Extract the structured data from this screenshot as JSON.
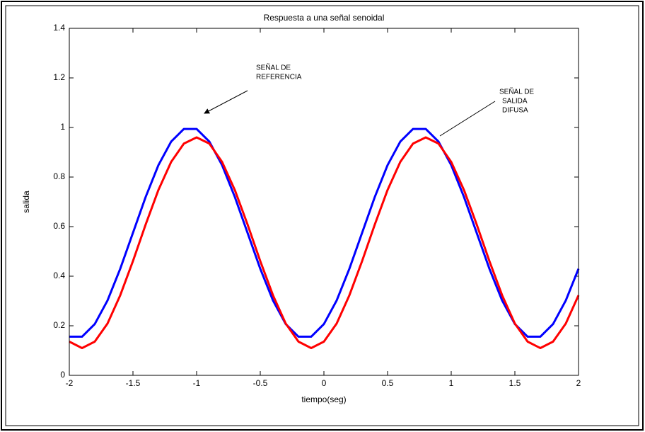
{
  "chart_data": {
    "type": "line",
    "title": "Respuesta a una señal senoidal",
    "xlabel": "tiempo(seg)",
    "ylabel": "salida",
    "x": [
      -2,
      -1.9,
      -1.8,
      -1.7,
      -1.6,
      -1.5,
      -1.4,
      -1.3,
      -1.2,
      -1.1,
      -1,
      -0.9,
      -0.8,
      -0.7,
      -0.6,
      -0.5,
      -0.4,
      -0.3,
      -0.2,
      -0.1,
      0,
      0.1,
      0.2,
      0.3,
      0.4,
      0.5,
      0.6,
      0.7,
      0.8,
      0.9,
      1,
      1.1,
      1.2,
      1.3,
      1.4,
      1.5,
      1.6,
      1.7,
      1.8,
      1.9,
      2
    ],
    "series": [
      {
        "name": "SEÑAL DE REFERENCIA",
        "color": "#0000ff",
        "values": [
          0.156,
          0.156,
          0.207,
          0.302,
          0.43,
          0.575,
          0.72,
          0.848,
          0.943,
          0.994,
          0.994,
          0.943,
          0.848,
          0.72,
          0.575,
          0.43,
          0.302,
          0.207,
          0.156,
          0.156,
          0.207,
          0.302,
          0.43,
          0.575,
          0.72,
          0.848,
          0.943,
          0.994,
          0.994,
          0.943,
          0.848,
          0.72,
          0.575,
          0.43,
          0.302,
          0.207,
          0.156,
          0.156,
          0.207,
          0.302,
          0.43
        ]
      },
      {
        "name": "SEÑAL DE SALIDA DIFUSA",
        "color": "#ff0000",
        "values": [
          0.136,
          0.11,
          0.136,
          0.209,
          0.323,
          0.461,
          0.609,
          0.748,
          0.861,
          0.935,
          0.96,
          0.935,
          0.861,
          0.748,
          0.609,
          0.461,
          0.323,
          0.209,
          0.136,
          0.11,
          0.136,
          0.209,
          0.323,
          0.461,
          0.609,
          0.748,
          0.861,
          0.935,
          0.96,
          0.935,
          0.861,
          0.748,
          0.609,
          0.461,
          0.323,
          0.209,
          0.136,
          0.11,
          0.136,
          0.209,
          0.323
        ]
      }
    ],
    "annotations": [
      {
        "lines": [
          "SEÑAL DE",
          "REFERENCIA"
        ]
      },
      {
        "lines": [
          "SEÑAL DE",
          "SALIDA",
          "DIFUSA"
        ]
      }
    ],
    "xlim": [
      -2,
      2
    ],
    "xticks": [
      -2,
      -1.5,
      -1,
      -0.5,
      0,
      0.5,
      1,
      1.5,
      2
    ],
    "ylim": [
      0,
      1.4
    ],
    "yticks": [
      0,
      0.2,
      0.4,
      0.6,
      0.8,
      1,
      1.2,
      1.4
    ],
    "grid": false
  }
}
